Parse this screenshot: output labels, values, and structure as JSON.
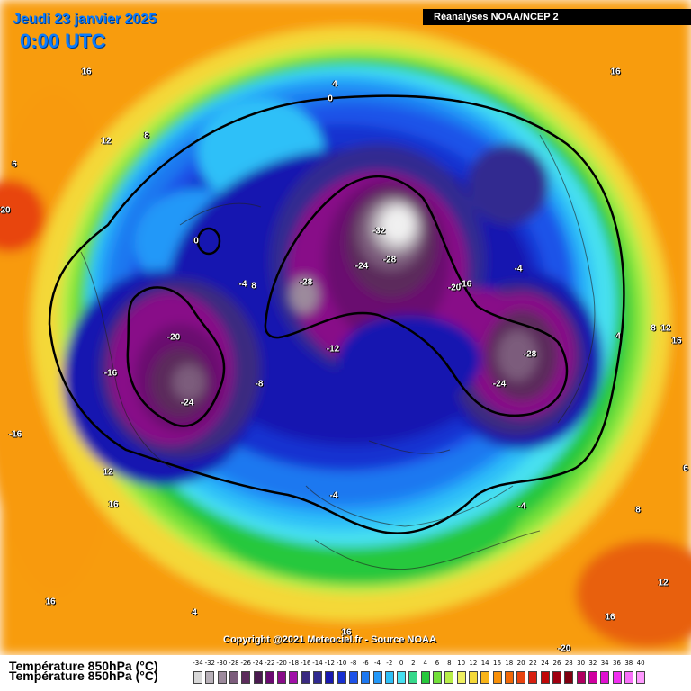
{
  "header": {
    "date": "Jeudi 23 janvier 2025",
    "time": "0:00 UTC",
    "source": "Réanalyses NOAA/NCEP 2"
  },
  "copyright": "Copyright @2021 Meteociel.fr - Source NOAA",
  "legend": {
    "title": "Température 850hPa (°C)",
    "title_repeat": "Température 850hPa (°C)",
    "ticks": [
      "-34",
      "-32",
      "-30",
      "-28",
      "-26",
      "-24",
      "-22",
      "-20",
      "-18",
      "-16",
      "-14",
      "-12",
      "-10",
      "-8",
      "-6",
      "-4",
      "-2",
      "0",
      "2",
      "4",
      "6",
      "8",
      "10",
      "12",
      "14",
      "16",
      "18",
      "20",
      "22",
      "24",
      "26",
      "28",
      "30",
      "32",
      "34",
      "36",
      "38",
      "40"
    ],
    "colors": [
      "#d8d8d8",
      "#b8b0b8",
      "#9c8a9c",
      "#7c5c7c",
      "#5c2c5c",
      "#4a1a50",
      "#6a0a70",
      "#880c88",
      "#a010a8",
      "#3a2a80",
      "#302a90",
      "#1818b0",
      "#1830d0",
      "#1e52e8",
      "#1e78f0",
      "#2498f8",
      "#2ec0f8",
      "#46e0f0",
      "#36d88a",
      "#26c83c",
      "#72e03a",
      "#b8ee48",
      "#f0f060",
      "#f4d838",
      "#f8b418",
      "#f89008",
      "#f06808",
      "#e84410",
      "#d82010",
      "#c00808",
      "#a00010",
      "#800010",
      "#b00060",
      "#d000a0",
      "#e010d0",
      "#f030f0",
      "#f870f8",
      "#ff99ff"
    ]
  },
  "map_labels": [
    {
      "text": "16"
    },
    {
      "text": "12"
    },
    {
      "text": "8"
    },
    {
      "text": "4"
    },
    {
      "text": "0"
    },
    {
      "text": "16"
    },
    {
      "text": "20"
    },
    {
      "text": "0"
    },
    {
      "text": "-4"
    },
    {
      "text": "8"
    },
    {
      "text": "-32"
    },
    {
      "text": "-28"
    },
    {
      "text": "-24"
    },
    {
      "text": "-28"
    },
    {
      "text": "-20"
    },
    {
      "text": "-16"
    },
    {
      "text": "-4"
    },
    {
      "text": "-12"
    },
    {
      "text": "-20"
    },
    {
      "text": "-16"
    },
    {
      "text": "-24"
    },
    {
      "text": "-8"
    },
    {
      "text": "-28"
    },
    {
      "text": "-24"
    },
    {
      "text": "4"
    },
    {
      "text": "8"
    },
    {
      "text": "12"
    },
    {
      "text": "16"
    },
    {
      "text": "-16"
    },
    {
      "text": "12"
    },
    {
      "text": "16"
    },
    {
      "text": "-4"
    },
    {
      "text": "-4"
    },
    {
      "text": "8"
    },
    {
      "text": "6"
    },
    {
      "text": "16"
    },
    {
      "text": "4"
    },
    {
      "text": "16"
    },
    {
      "text": "12"
    },
    {
      "text": "16"
    },
    {
      "text": "-20"
    },
    {
      "text": "6"
    }
  ]
}
